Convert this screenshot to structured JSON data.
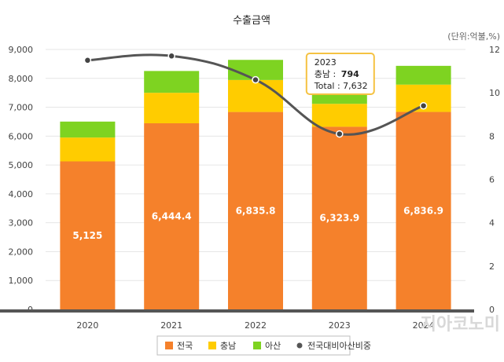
{
  "chart_data": {
    "type": "bar",
    "title": "수출금액",
    "unit_label": "(단위:억불,%)",
    "categories": [
      "2020",
      "2021",
      "2022",
      "2023",
      "2024"
    ],
    "series": [
      {
        "name": "전국",
        "values": [
          5125,
          6444.4,
          6835.8,
          6323.9,
          6836.9
        ],
        "labels": [
          "5,125",
          "6,444.4",
          "6,835.8",
          "6,323.9",
          "6,836.9"
        ],
        "color": "#F5812B"
      },
      {
        "name": "충남",
        "values": [
          826,
          1056,
          1107,
          794,
          946
        ],
        "color": "#FFCC00"
      },
      {
        "name": "아산",
        "values": [
          552,
          755,
          697,
          514,
          650
        ],
        "color": "#7ED321"
      },
      {
        "name": "전국대비아산비중",
        "type": "line",
        "axis": "right",
        "values": [
          11.5,
          11.7,
          10.6,
          8.1,
          9.4
        ],
        "color": "#555555"
      }
    ],
    "y_left": {
      "min": 0,
      "max": 9000,
      "step": 1000,
      "tick_labels": [
        "0",
        "1,000",
        "2,000",
        "3,000",
        "4,000",
        "5,000",
        "6,000",
        "7,000",
        "8,000",
        "9,000"
      ]
    },
    "y_right": {
      "min": 0,
      "max": 12,
      "step": 2,
      "tick_labels": [
        "0",
        "2",
        "4",
        "6",
        "8",
        "10",
        "12"
      ]
    },
    "grid": true,
    "legend_position": "bottom",
    "tooltip": {
      "category": "2023",
      "line1": "2023",
      "line2_label": "충남 : ",
      "line2_value": "794",
      "line3": "Total : 7,632"
    }
  },
  "watermark": "지아코노미",
  "colors": {
    "grid": "#e6e6e6",
    "axis": "#555555",
    "tooltip_border": "#F5C242"
  }
}
